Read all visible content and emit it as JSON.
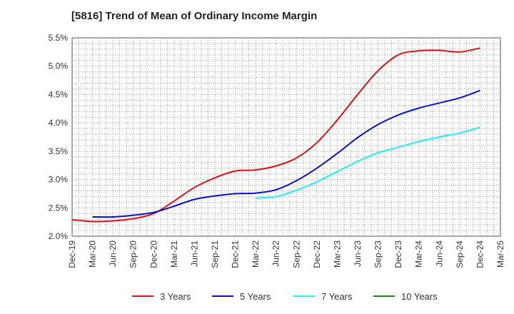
{
  "chart_data": {
    "type": "line",
    "title": "[5816]  Trend of Mean of Ordinary Income Margin",
    "xlabel": "",
    "ylabel": "",
    "ylim": [
      2.0,
      5.5
    ],
    "y_ticks": [
      "2.0%",
      "2.5%",
      "3.0%",
      "3.5%",
      "4.0%",
      "4.5%",
      "5.0%",
      "5.5%"
    ],
    "y_tick_values": [
      2.0,
      2.5,
      3.0,
      3.5,
      4.0,
      4.5,
      5.0,
      5.5
    ],
    "x_ticks": [
      "Dec-19",
      "Mar-20",
      "Jun-20",
      "Sep-20",
      "Dec-20",
      "Mar-21",
      "Jun-21",
      "Sep-21",
      "Dec-21",
      "Mar-22",
      "Jun-22",
      "Sep-22",
      "Dec-22",
      "Mar-23",
      "Jun-23",
      "Sep-23",
      "Dec-23",
      "Mar-24",
      "Jun-24",
      "Sep-24",
      "Dec-24",
      "Mar-25"
    ],
    "grid": true,
    "legend_position": "bottom",
    "series": [
      {
        "name": "3 Years",
        "color": "#dd1111",
        "points": [
          [
            0,
            2.29
          ],
          [
            1,
            2.26
          ],
          [
            2,
            2.27
          ],
          [
            3,
            2.31
          ],
          [
            4,
            2.4
          ],
          [
            5,
            2.62
          ],
          [
            6,
            2.86
          ],
          [
            7,
            3.03
          ],
          [
            8,
            3.15
          ],
          [
            9,
            3.17
          ],
          [
            10,
            3.24
          ],
          [
            11,
            3.38
          ],
          [
            12,
            3.65
          ],
          [
            13,
            4.05
          ],
          [
            14,
            4.5
          ],
          [
            15,
            4.92
          ],
          [
            16,
            5.2
          ],
          [
            17,
            5.27
          ],
          [
            18,
            5.28
          ],
          [
            19,
            5.25
          ],
          [
            20,
            5.32
          ]
        ]
      },
      {
        "name": "5 Years",
        "color": "#0a11cc",
        "points": [
          [
            1,
            2.34
          ],
          [
            2,
            2.34
          ],
          [
            3,
            2.37
          ],
          [
            4,
            2.42
          ],
          [
            5,
            2.53
          ],
          [
            6,
            2.65
          ],
          [
            7,
            2.71
          ],
          [
            8,
            2.75
          ],
          [
            9,
            2.76
          ],
          [
            10,
            2.82
          ],
          [
            11,
            2.98
          ],
          [
            12,
            3.2
          ],
          [
            13,
            3.46
          ],
          [
            14,
            3.74
          ],
          [
            15,
            3.97
          ],
          [
            16,
            4.14
          ],
          [
            17,
            4.26
          ],
          [
            18,
            4.35
          ],
          [
            19,
            4.44
          ],
          [
            20,
            4.57
          ]
        ]
      },
      {
        "name": "7 Years",
        "color": "#22eeee",
        "points": [
          [
            9,
            2.67
          ],
          [
            10,
            2.7
          ],
          [
            11,
            2.81
          ],
          [
            12,
            2.96
          ],
          [
            13,
            3.14
          ],
          [
            14,
            3.32
          ],
          [
            15,
            3.47
          ],
          [
            16,
            3.57
          ],
          [
            17,
            3.67
          ],
          [
            18,
            3.75
          ],
          [
            19,
            3.82
          ],
          [
            20,
            3.92
          ]
        ]
      },
      {
        "name": "10 Years",
        "color": "#118811",
        "points": []
      }
    ]
  }
}
